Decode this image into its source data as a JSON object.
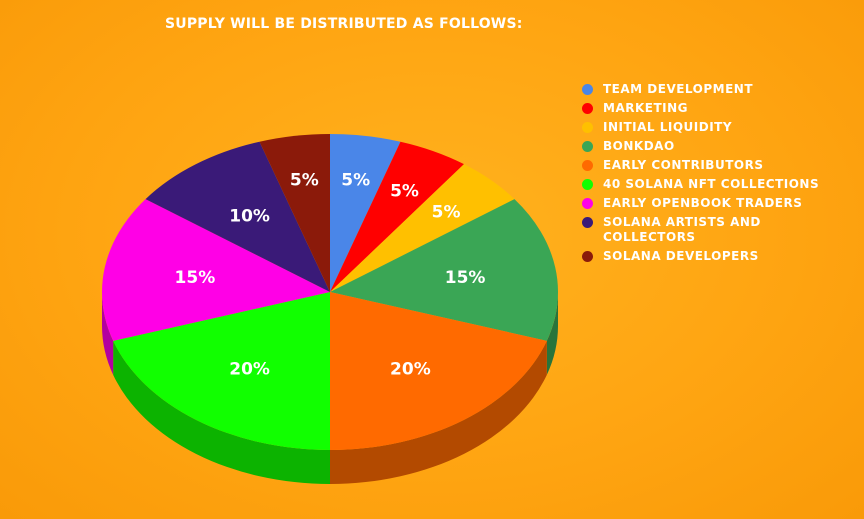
{
  "chart_data": {
    "type": "pie",
    "title": "SUPPLY WILL BE DISTRIBUTED AS FOLLOWS:",
    "legend_position": "right",
    "slices": [
      {
        "label": "TEAM DEVELOPMENT",
        "value": 5,
        "display": "5%",
        "color": "#4a86e8"
      },
      {
        "label": "MARKETING",
        "value": 5,
        "display": "5%",
        "color": "#ff0000"
      },
      {
        "label": "INITIAL LIQUIDITY",
        "value": 5,
        "display": "5%",
        "color": "#ffc000"
      },
      {
        "label": "BONKDAO",
        "value": 15,
        "display": "15%",
        "color": "#3aa655"
      },
      {
        "label": "EARLY CONTRIBUTORS",
        "value": 20,
        "display": "20%",
        "color": "#ff6a00"
      },
      {
        "label": "40 SOLANA NFT COLLECTIONS",
        "value": 20,
        "display": "20%",
        "color": "#11ff00"
      },
      {
        "label": "EARLY OPENBOOK TRADERS",
        "value": 15,
        "display": "15%",
        "color": "#ff00e6"
      },
      {
        "label": "SOLANA ARTISTS AND COLLECTORS",
        "value": 10,
        "display": "10%",
        "color": "#3a1a78"
      },
      {
        "label": "SOLANA DEVELOPERS",
        "value": 5,
        "display": "5%",
        "color": "#8b1a0a"
      }
    ]
  }
}
